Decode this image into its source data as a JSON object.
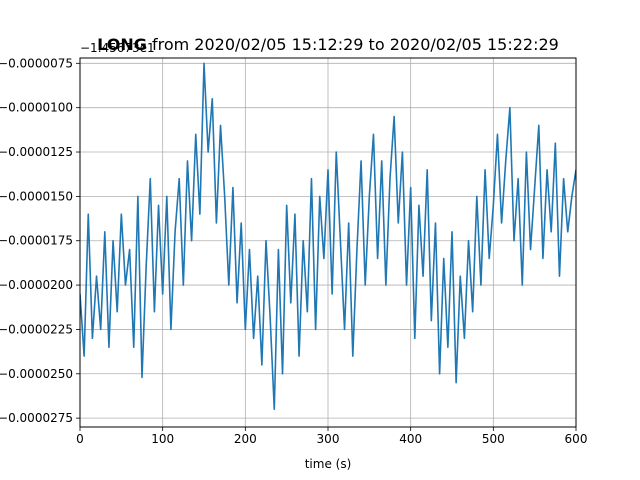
{
  "chart_data": {
    "type": "line",
    "title_bold": "LONG",
    "title_rest": " from 2020/02/05 15:12:29 to 2020/02/05 15:22:29",
    "offset_label": "−1.45673e1",
    "xlabel": "time (s)",
    "ylabel": "",
    "xlim": [
      0,
      600
    ],
    "ylim": [
      -2.8e-05,
      -7.2e-06
    ],
    "x_ticks": [
      0,
      100,
      200,
      300,
      400,
      500,
      600
    ],
    "x_tick_labels": [
      "0",
      "100",
      "200",
      "300",
      "400",
      "500",
      "600"
    ],
    "y_ticks": [
      -7.5e-06,
      -1e-05,
      -1.25e-05,
      -1.5e-05,
      -1.75e-05,
      -2e-05,
      -2.25e-05,
      -2.5e-05,
      -2.75e-05
    ],
    "y_tick_labels": [
      "−0.0000075",
      "−0.0000100",
      "−0.0000125",
      "−0.0000150",
      "−0.0000175",
      "−0.0000200",
      "−0.0000225",
      "−0.0000250",
      "−0.0000275"
    ],
    "grid": true,
    "legend": "none",
    "colors": {
      "line": "#1f77b4",
      "grid": "#b0b0b0"
    },
    "series": [
      {
        "x": [
          0,
          5,
          10,
          15,
          20,
          25,
          30,
          35,
          40,
          45,
          50,
          55,
          60,
          65,
          70,
          75,
          80,
          85,
          90,
          95,
          100,
          105,
          110,
          115,
          120,
          125,
          130,
          135,
          140,
          145,
          150,
          155,
          160,
          165,
          170,
          175,
          180,
          185,
          190,
          195,
          200,
          205,
          210,
          215,
          220,
          225,
          230,
          235,
          240,
          245,
          250,
          255,
          260,
          265,
          270,
          275,
          280,
          285,
          290,
          295,
          300,
          305,
          310,
          315,
          320,
          325,
          330,
          335,
          340,
          345,
          350,
          355,
          360,
          365,
          370,
          375,
          380,
          385,
          390,
          395,
          400,
          405,
          410,
          415,
          420,
          425,
          430,
          435,
          440,
          445,
          450,
          455,
          460,
          465,
          470,
          475,
          480,
          485,
          490,
          495,
          500,
          505,
          510,
          515,
          520,
          525,
          530,
          535,
          540,
          545,
          550,
          555,
          560,
          565,
          570,
          575,
          580,
          585,
          590,
          595,
          600
        ],
        "y": [
          -2.05e-05,
          -2.4e-05,
          -1.6e-05,
          -2.3e-05,
          -1.95e-05,
          -2.25e-05,
          -1.7e-05,
          -2.35e-05,
          -1.75e-05,
          -2.15e-05,
          -1.6e-05,
          -2e-05,
          -1.8e-05,
          -2.35e-05,
          -1.5e-05,
          -2.52e-05,
          -1.9e-05,
          -1.4e-05,
          -2.15e-05,
          -1.55e-05,
          -2.05e-05,
          -1.5e-05,
          -2.25e-05,
          -1.7e-05,
          -1.4e-05,
          -2e-05,
          -1.3e-05,
          -1.75e-05,
          -1.15e-05,
          -1.6e-05,
          -7.5e-06,
          -1.25e-05,
          -9.5e-06,
          -1.65e-05,
          -1.1e-05,
          -1.5e-05,
          -2e-05,
          -1.45e-05,
          -2.1e-05,
          -1.65e-05,
          -2.25e-05,
          -1.8e-05,
          -2.3e-05,
          -1.95e-05,
          -2.45e-05,
          -1.75e-05,
          -2.18e-05,
          -2.7e-05,
          -1.8e-05,
          -2.5e-05,
          -1.55e-05,
          -2.1e-05,
          -1.6e-05,
          -2.4e-05,
          -1.75e-05,
          -2.15e-05,
          -1.4e-05,
          -2.25e-05,
          -1.5e-05,
          -1.85e-05,
          -1.35e-05,
          -2.05e-05,
          -1.25e-05,
          -1.75e-05,
          -2.25e-05,
          -1.65e-05,
          -2.4e-05,
          -1.8e-05,
          -1.3e-05,
          -2e-05,
          -1.5e-05,
          -1.15e-05,
          -1.85e-05,
          -1.3e-05,
          -2e-05,
          -1.4e-05,
          -1.05e-05,
          -1.65e-05,
          -1.25e-05,
          -2e-05,
          -1.45e-05,
          -2.3e-05,
          -1.55e-05,
          -1.95e-05,
          -1.35e-05,
          -2.2e-05,
          -1.65e-05,
          -2.5e-05,
          -1.85e-05,
          -2.35e-05,
          -1.7e-05,
          -2.55e-05,
          -1.95e-05,
          -2.3e-05,
          -1.75e-05,
          -2.15e-05,
          -1.5e-05,
          -2e-05,
          -1.35e-05,
          -1.85e-05,
          -1.55e-05,
          -1.15e-05,
          -1.65e-05,
          -1.3e-05,
          -1e-05,
          -1.75e-05,
          -1.4e-05,
          -2e-05,
          -1.25e-05,
          -1.8e-05,
          -1.45e-05,
          -1.1e-05,
          -1.85e-05,
          -1.35e-05,
          -1.7e-05,
          -1.2e-05,
          -1.95e-05,
          -1.4e-05,
          -1.7e-05,
          -1.5e-05,
          -1.35e-05
        ]
      }
    ]
  }
}
